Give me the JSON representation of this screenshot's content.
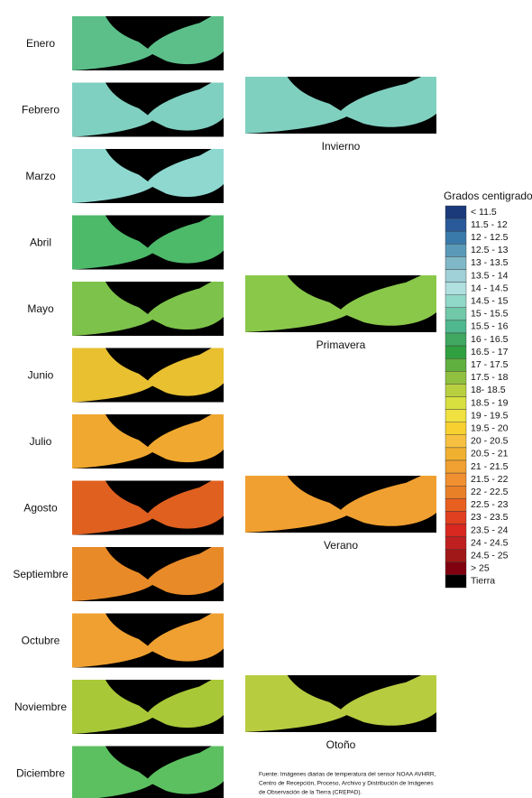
{
  "months": [
    {
      "label": "Enero",
      "color": "#5cbf8a"
    },
    {
      "label": "Febrero",
      "color": "#7fd0c0"
    },
    {
      "label": "Marzo",
      "color": "#8ed8d0"
    },
    {
      "label": "Abril",
      "color": "#4dba6a"
    },
    {
      "label": "Mayo",
      "color": "#7dc24a"
    },
    {
      "label": "Junio",
      "color": "#e8c030"
    },
    {
      "label": "Julio",
      "color": "#f0a830"
    },
    {
      "label": "Agosto",
      "color": "#e06020"
    },
    {
      "label": "Septiembre",
      "color": "#e88a28"
    },
    {
      "label": "Octubre",
      "color": "#f0a030"
    },
    {
      "label": "Noviembre",
      "color": "#a8c838"
    },
    {
      "label": "Diciembre",
      "color": "#5cc060"
    }
  ],
  "seasons": [
    {
      "label": "Invierno",
      "color": "#80d0c0"
    },
    {
      "label": "Primavera",
      "color": "#8ac84a"
    },
    {
      "label": "Verano",
      "color": "#f0a030"
    },
    {
      "label": "Otoño",
      "color": "#b8cc40"
    }
  ],
  "legend": {
    "title": "Grados centigrados",
    "items": [
      {
        "label": "< 11.5",
        "color": "#1a3a7a"
      },
      {
        "label": "11.5 - 12",
        "color": "#2a5a9a"
      },
      {
        "label": "12 - 12.5",
        "color": "#3a7aaa"
      },
      {
        "label": "12.5 - 13",
        "color": "#5a9ab8"
      },
      {
        "label": "13 - 13.5",
        "color": "#80b8c8"
      },
      {
        "label": "13.5 - 14",
        "color": "#a0d0d8"
      },
      {
        "label": "14 - 14.5",
        "color": "#b0e0e0"
      },
      {
        "label": "14.5 - 15",
        "color": "#90d8c8"
      },
      {
        "label": "15 - 15.5",
        "color": "#70c8a8"
      },
      {
        "label": "15.5 - 16",
        "color": "#50b890"
      },
      {
        "label": "16 - 16.5",
        "color": "#40a860"
      },
      {
        "label": "16.5 - 17",
        "color": "#30a040"
      },
      {
        "label": "17 - 17.5",
        "color": "#60b040"
      },
      {
        "label": "17.5 - 18",
        "color": "#90c040"
      },
      {
        "label": "18- 18.5",
        "color": "#b8d040"
      },
      {
        "label": "18.5 - 19",
        "color": "#d8e040"
      },
      {
        "label": "19 - 19.5",
        "color": "#f0e040"
      },
      {
        "label": "19.5 - 20",
        "color": "#f8d030"
      },
      {
        "label": "20 - 20.5",
        "color": "#f8c040"
      },
      {
        "label": "20.5 - 21",
        "color": "#f0b030"
      },
      {
        "label": "21 - 21.5",
        "color": "#f0a030"
      },
      {
        "label": "21.5 - 22",
        "color": "#f09030"
      },
      {
        "label": "22 - 22.5",
        "color": "#e88028"
      },
      {
        "label": "22.5 - 23",
        "color": "#e86020"
      },
      {
        "label": "23 - 23.5",
        "color": "#e04020"
      },
      {
        "label": "23.5 - 24",
        "color": "#d82820"
      },
      {
        "label": "24 - 24.5",
        "color": "#c02020"
      },
      {
        "label": "24.5 - 25",
        "color": "#a01818"
      },
      {
        "label": "> 25",
        "color": "#800010"
      },
      {
        "label": "Tierra",
        "color": "#000000"
      }
    ]
  },
  "source": [
    "Fuente:  Imágenes diarias de temperatura del sensor NOAA AVHRR,",
    "Centro de Recepción, Proceso, Archivo y Distribución de Imágenes",
    "de Observación de la Tierra (CREPAD)."
  ]
}
